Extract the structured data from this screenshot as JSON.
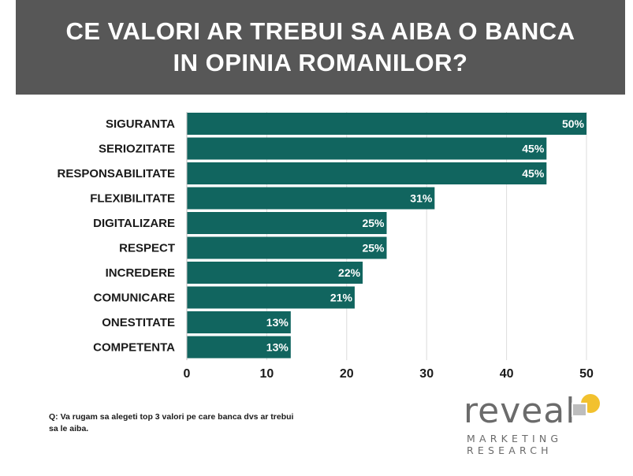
{
  "header": {
    "title_line1": "CE VALORI AR TREBUI SA AIBA O BANCA",
    "title_line2": "IN OPINIA ROMANILOR?",
    "background": "#575757"
  },
  "chart_data": {
    "type": "bar",
    "orientation": "horizontal",
    "categories": [
      "SIGURANTA",
      "SERIOZITATE",
      "RESPONSABILITATE",
      "FLEXIBILITATE",
      "DIGITALIZARE",
      "RESPECT",
      "INCREDERE",
      "COMUNICARE",
      "ONESTITATE",
      "COMPETENTA"
    ],
    "values": [
      50,
      45,
      45,
      31,
      25,
      25,
      22,
      21,
      13,
      13
    ],
    "value_labels": [
      "50%",
      "45%",
      "45%",
      "31%",
      "25%",
      "25%",
      "22%",
      "21%",
      "13%",
      "13%"
    ],
    "xlim": [
      0,
      50
    ],
    "x_ticks": [
      0,
      10,
      20,
      30,
      40,
      50
    ],
    "grid": true,
    "bar_color": "#11655F"
  },
  "footer": {
    "question": "Q: Va rugam sa alegeti top 3 valori pe care banca dvs ar trebui sa le aiba."
  },
  "logo": {
    "word": "reveal",
    "sub_line1": "MARKETING",
    "sub_line2": "RESEARCH",
    "accent_color": "#F2C12E",
    "text_color": "#6b6b6b"
  }
}
